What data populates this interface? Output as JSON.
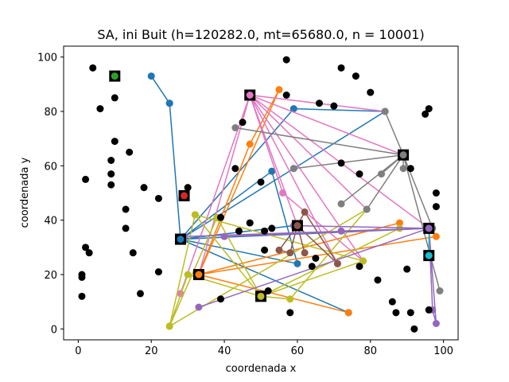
{
  "chart_data": {
    "type": "scatter",
    "title": "SA, ini Buit (h=120282.0, mt=65680.0, n = 10001)",
    "xlabel": "coordenada x",
    "ylabel": "coordenada y",
    "xlim": [
      -4,
      104
    ],
    "ylim": [
      -4,
      104
    ],
    "xticks": [
      0,
      20,
      40,
      60,
      80,
      100
    ],
    "yticks": [
      0,
      20,
      40,
      60,
      80,
      100
    ],
    "grid": false,
    "points": [
      [
        4,
        96
      ],
      [
        6,
        81
      ],
      [
        10,
        85
      ],
      [
        10,
        69
      ],
      [
        9,
        62
      ],
      [
        9,
        57
      ],
      [
        9,
        53
      ],
      [
        14,
        65
      ],
      [
        2,
        55
      ],
      [
        13,
        44
      ],
      [
        13,
        37
      ],
      [
        15,
        28
      ],
      [
        18,
        52
      ],
      [
        22,
        48
      ],
      [
        2,
        30
      ],
      [
        3,
        28
      ],
      [
        1,
        20
      ],
      [
        1,
        19
      ],
      [
        1,
        12
      ],
      [
        17,
        13
      ],
      [
        22,
        21
      ],
      [
        30,
        52
      ],
      [
        39,
        41
      ],
      [
        39,
        11
      ],
      [
        43,
        59
      ],
      [
        45,
        76
      ],
      [
        50,
        54
      ],
      [
        53,
        37
      ],
      [
        57,
        99
      ],
      [
        57,
        86
      ],
      [
        65,
        26
      ],
      [
        66,
        83
      ],
      [
        70,
        82
      ],
      [
        72,
        96
      ],
      [
        76,
        93
      ],
      [
        80,
        87
      ],
      [
        72,
        61
      ],
      [
        77,
        57
      ],
      [
        77,
        23
      ],
      [
        82,
        18
      ],
      [
        86,
        10
      ],
      [
        87,
        6
      ],
      [
        90,
        22
      ],
      [
        91,
        6
      ],
      [
        91,
        59
      ],
      [
        92,
        0
      ],
      [
        95,
        79
      ],
      [
        96,
        81
      ],
      [
        98,
        50
      ],
      [
        98,
        45
      ],
      [
        96,
        7
      ],
      [
        58,
        6
      ],
      [
        47,
        39
      ],
      [
        51,
        36
      ],
      [
        44,
        36
      ],
      [
        51,
        29
      ],
      [
        52,
        14
      ],
      [
        64,
        23
      ]
    ],
    "depots": [
      {
        "x": 10,
        "y": 93,
        "color": "#2ca02c"
      },
      {
        "x": 29,
        "y": 49,
        "color": "#d62728"
      },
      {
        "x": 28,
        "y": 33,
        "color": "#1f77b4"
      },
      {
        "x": 47,
        "y": 86,
        "color": "#e377c2"
      },
      {
        "x": 33,
        "y": 20,
        "color": "#ff7f0e"
      },
      {
        "x": 50,
        "y": 12,
        "color": "#bcbd22"
      },
      {
        "x": 60,
        "y": 38,
        "color": "#8c564b"
      },
      {
        "x": 89,
        "y": 64,
        "color": "#7f7f7f"
      },
      {
        "x": 96,
        "y": 37,
        "color": "#9467bd"
      },
      {
        "x": 96,
        "y": 27,
        "color": "#17becf"
      }
    ],
    "series": [
      {
        "color": "#1f77b4",
        "points": [
          [
            28,
            33
          ],
          [
            25,
            83
          ],
          [
            20,
            93
          ],
          [
            25,
            83
          ],
          [
            28,
            33
          ],
          [
            53,
            58
          ],
          [
            60,
            24
          ],
          [
            28,
            33
          ],
          [
            59,
            81
          ],
          [
            84,
            80
          ],
          [
            59,
            59
          ],
          [
            28,
            33
          ],
          [
            74,
            6
          ],
          [
            28,
            33
          ],
          [
            59,
            38
          ],
          [
            28,
            33
          ],
          [
            96,
            37
          ],
          [
            28,
            33
          ]
        ]
      },
      {
        "color": "#ff7f0e",
        "points": [
          [
            33,
            20
          ],
          [
            55,
            88
          ],
          [
            47,
            68
          ],
          [
            33,
            20
          ],
          [
            88,
            39
          ],
          [
            33,
            20
          ],
          [
            74,
            6
          ],
          [
            33,
            20
          ],
          [
            98,
            34
          ],
          [
            33,
            20
          ]
        ]
      },
      {
        "color": "#e377c2",
        "points": [
          [
            47,
            86
          ],
          [
            56,
            50
          ],
          [
            78,
            25
          ],
          [
            47,
            86
          ],
          [
            28,
            13
          ],
          [
            47,
            86
          ],
          [
            89,
            64
          ],
          [
            47,
            86
          ],
          [
            60,
            38
          ],
          [
            47,
            86
          ],
          [
            96,
            37
          ],
          [
            47,
            86
          ],
          [
            84,
            80
          ],
          [
            47,
            86
          ],
          [
            79,
            44
          ],
          [
            47,
            86
          ],
          [
            33,
            20
          ],
          [
            47,
            86
          ],
          [
            71,
            24
          ],
          [
            47,
            86
          ]
        ]
      },
      {
        "color": "#bcbd22",
        "points": [
          [
            50,
            12
          ],
          [
            30,
            20
          ],
          [
            25,
            1
          ],
          [
            32,
            42
          ],
          [
            50,
            12
          ],
          [
            38,
            41
          ],
          [
            25,
            1
          ],
          [
            79,
            44
          ],
          [
            58,
            11
          ],
          [
            50,
            12
          ],
          [
            78,
            25
          ],
          [
            32,
            42
          ],
          [
            50,
            12
          ],
          [
            88,
            37
          ],
          [
            50,
            12
          ]
        ]
      },
      {
        "color": "#8c564b",
        "points": [
          [
            60,
            38
          ],
          [
            55,
            29
          ],
          [
            58,
            28
          ],
          [
            60,
            38
          ],
          [
            62,
            43
          ],
          [
            71,
            24
          ],
          [
            60,
            38
          ],
          [
            62,
            28
          ],
          [
            60,
            38
          ]
        ]
      },
      {
        "color": "#7f7f7f",
        "points": [
          [
            89,
            64
          ],
          [
            99,
            14
          ],
          [
            89,
            64
          ],
          [
            97,
            37
          ],
          [
            89,
            64
          ],
          [
            83,
            57
          ],
          [
            89,
            64
          ],
          [
            84,
            80
          ],
          [
            89,
            64
          ],
          [
            59,
            59
          ],
          [
            89,
            64
          ],
          [
            43,
            74
          ],
          [
            89,
            64
          ],
          [
            72,
            46
          ],
          [
            89,
            64
          ],
          [
            89,
            59
          ],
          [
            89,
            64
          ],
          [
            79,
            44
          ],
          [
            89,
            64
          ]
        ]
      },
      {
        "color": "#9467bd",
        "points": [
          [
            96,
            37
          ],
          [
            98,
            2
          ],
          [
            97,
            7
          ],
          [
            96,
            37
          ],
          [
            33,
            8
          ],
          [
            96,
            37
          ],
          [
            40,
            34
          ],
          [
            96,
            37
          ],
          [
            59,
            38
          ],
          [
            96,
            37
          ],
          [
            72,
            36
          ],
          [
            96,
            37
          ],
          [
            29,
            34
          ],
          [
            96,
            37
          ]
        ]
      },
      {
        "color": "#17becf",
        "points": [
          [
            96,
            27
          ],
          [
            96,
            37
          ],
          [
            96,
            27
          ]
        ]
      }
    ]
  }
}
